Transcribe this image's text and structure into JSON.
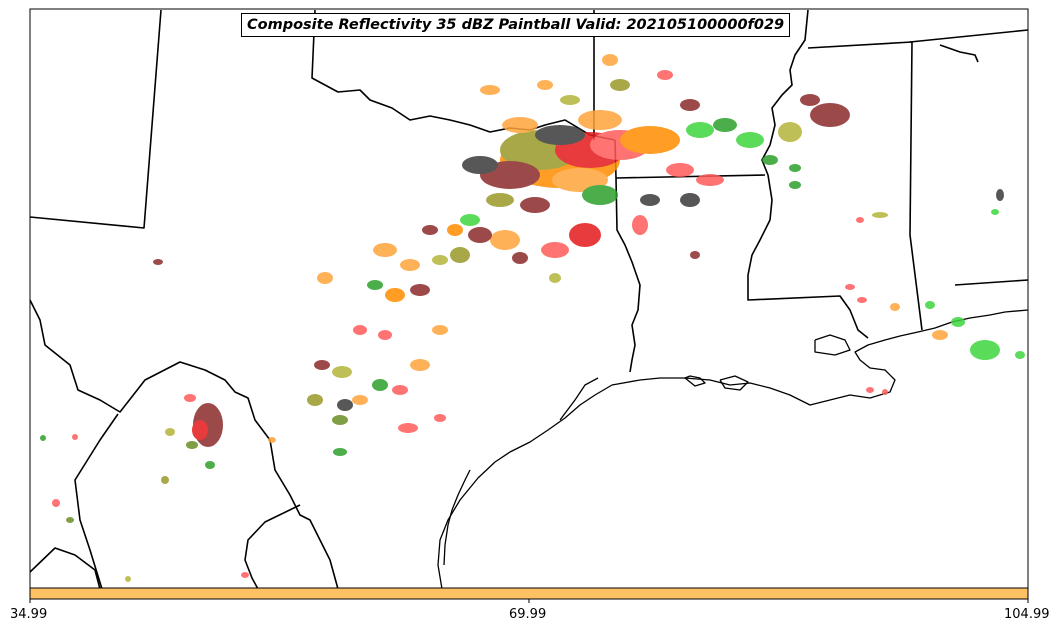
{
  "map": {
    "title": "Composite Reflectivity 35 dBZ Paintball Valid: 202105100000f029"
  },
  "colorbar": {
    "fill_color": "#fdc163",
    "ticks": [
      "34.99",
      "69.99",
      "104.99"
    ]
  },
  "palette": {
    "member_colors": [
      "#ff5b5b",
      "#ff8c00",
      "#ffa43a",
      "#e41a1c",
      "#2ca02c",
      "#3ed63e",
      "#9a9a2a",
      "#8b2a2a",
      "#3a3a3a",
      "#6b8e23",
      "#b5b53a"
    ],
    "state_border": "#000000",
    "coastline": "#000000"
  }
}
